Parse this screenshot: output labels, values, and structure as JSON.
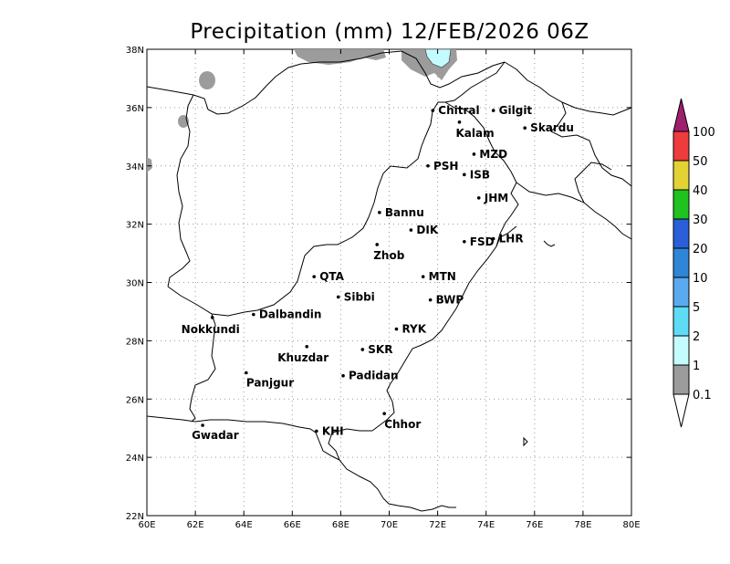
{
  "title": "Precipitation (mm) 12/FEB/2026 06Z",
  "map": {
    "lon_range": [
      60,
      80
    ],
    "lat_range": [
      22,
      38
    ],
    "x_ticks": [
      "60E",
      "62E",
      "64E",
      "66E",
      "68E",
      "70E",
      "72E",
      "74E",
      "76E",
      "78E",
      "80E"
    ],
    "y_ticks": [
      "22N",
      "24N",
      "26N",
      "28N",
      "30N",
      "32N",
      "34N",
      "36N",
      "38N"
    ],
    "grid": true
  },
  "cities": [
    {
      "name": "Chitral",
      "lon": 71.8,
      "lat": 35.9
    },
    {
      "name": "Gilgit",
      "lon": 74.3,
      "lat": 35.9
    },
    {
      "name": "Kalam",
      "lon": 72.9,
      "lat": 35.5
    },
    {
      "name": "Skardu",
      "lon": 75.6,
      "lat": 35.3
    },
    {
      "name": "MZD",
      "lon": 73.5,
      "lat": 34.4
    },
    {
      "name": "PSH",
      "lon": 71.6,
      "lat": 34.0
    },
    {
      "name": "ISB",
      "lon": 73.1,
      "lat": 33.7
    },
    {
      "name": "JHM",
      "lon": 73.7,
      "lat": 32.9
    },
    {
      "name": "Bannu",
      "lon": 69.6,
      "lat": 32.4
    },
    {
      "name": "DIK",
      "lon": 70.9,
      "lat": 31.8
    },
    {
      "name": "FSD",
      "lon": 73.1,
      "lat": 31.4
    },
    {
      "name": "LHR",
      "lon": 74.3,
      "lat": 31.5
    },
    {
      "name": "Zhob",
      "lon": 69.5,
      "lat": 31.3
    },
    {
      "name": "QTA",
      "lon": 66.9,
      "lat": 30.2
    },
    {
      "name": "MTN",
      "lon": 71.4,
      "lat": 30.2
    },
    {
      "name": "Sibbi",
      "lon": 67.9,
      "lat": 29.5
    },
    {
      "name": "BWP",
      "lon": 71.7,
      "lat": 29.4
    },
    {
      "name": "Dalbandin",
      "lon": 64.4,
      "lat": 28.9
    },
    {
      "name": "Nokkundi",
      "lon": 62.7,
      "lat": 28.8
    },
    {
      "name": "RYK",
      "lon": 70.3,
      "lat": 28.4
    },
    {
      "name": "Khuzdar",
      "lon": 66.6,
      "lat": 27.8
    },
    {
      "name": "SKR",
      "lon": 68.9,
      "lat": 27.7
    },
    {
      "name": "Panjgur",
      "lon": 64.1,
      "lat": 26.9
    },
    {
      "name": "Padidan",
      "lon": 68.1,
      "lat": 26.8
    },
    {
      "name": "Chhor",
      "lon": 69.8,
      "lat": 25.5
    },
    {
      "name": "KHI",
      "lon": 67.0,
      "lat": 24.9
    },
    {
      "name": "Gwadar",
      "lon": 62.3,
      "lat": 25.1
    }
  ],
  "colorbar": {
    "levels": [
      {
        "label": "100",
        "color": "#a01e6e"
      },
      {
        "label": "50",
        "color": "#ee3b3b"
      },
      {
        "label": "40",
        "color": "#e2d234"
      },
      {
        "label": "30",
        "color": "#1fc21f"
      },
      {
        "label": "20",
        "color": "#2b5fd9"
      },
      {
        "label": "10",
        "color": "#2f86d6"
      },
      {
        "label": "5",
        "color": "#5aaaf0"
      },
      {
        "label": "2",
        "color": "#5fdcf5"
      },
      {
        "label": "1",
        "color": "#c3fbff"
      },
      {
        "label": "0.1",
        "color": "#9c9c9c"
      }
    ]
  }
}
